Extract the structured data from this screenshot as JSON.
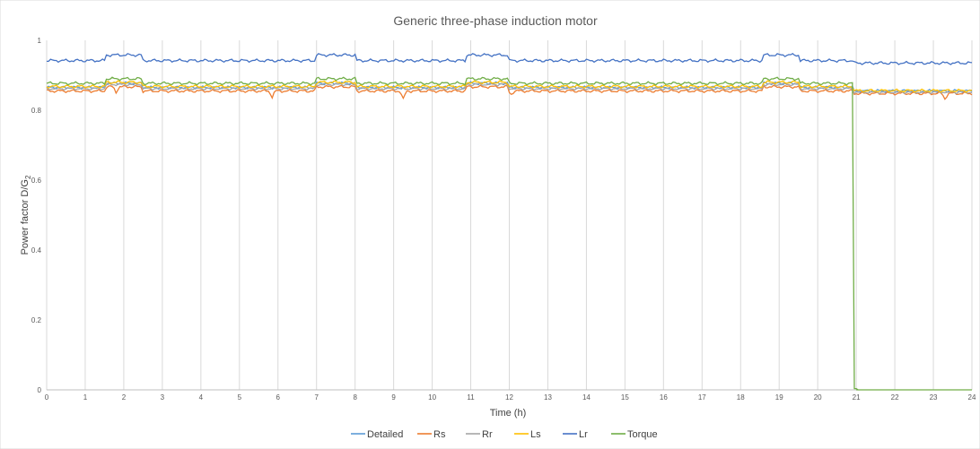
{
  "chart_data": {
    "type": "line",
    "title": "Generic three-phase induction motor",
    "xlabel": "Time (h)",
    "ylabel_main": "Power factor D/G",
    "ylabel_sub": "2",
    "xlim": [
      0,
      24
    ],
    "ylim": [
      0,
      1
    ],
    "x_ticks": [
      "0",
      "1",
      "2",
      "3",
      "4",
      "5",
      "6",
      "7",
      "8",
      "9",
      "10",
      "11",
      "12",
      "13",
      "14",
      "15",
      "16",
      "17",
      "18",
      "19",
      "20",
      "21",
      "22",
      "23",
      "24"
    ],
    "y_ticks": [
      "0",
      "0.2",
      "0.4",
      "0.6",
      "0.8",
      "1"
    ],
    "grid": "vertical",
    "legend_position": "bottom",
    "series": [
      {
        "name": "Detailed",
        "color": "#5b9bd5",
        "base": 0.865,
        "high": 0.877,
        "low_after": 0.855,
        "dip_points": []
      },
      {
        "name": "Rs",
        "color": "#ed7d31",
        "base": 0.855,
        "high": 0.867,
        "low_after": 0.848,
        "dip_points": [
          [
            1.8,
            0.852
          ],
          [
            5.85,
            0.838
          ],
          [
            9.25,
            0.83
          ],
          [
            12.05,
            0.846
          ],
          [
            23.3,
            0.833
          ]
        ]
      },
      {
        "name": "Rr",
        "color": "#a5a5a5",
        "base": 0.862,
        "high": 0.874,
        "low_after": 0.852,
        "dip_points": []
      },
      {
        "name": "Ls",
        "color": "#ffc000",
        "base": 0.868,
        "high": 0.88,
        "low_after": 0.856,
        "dip_points": []
      },
      {
        "name": "Lr",
        "color": "#4472c4",
        "base": 0.942,
        "high": 0.958,
        "low_after": 0.935,
        "dip_points": []
      },
      {
        "name": "Torque",
        "color": "#70ad47",
        "base": 0.877,
        "high": 0.89,
        "low_after": 0.0,
        "dip_points": [],
        "drop_at": 21.0
      }
    ],
    "elevated_intervals": [
      [
        1.55,
        2.45
      ],
      [
        7.0,
        8.0
      ],
      [
        10.9,
        11.95
      ],
      [
        18.6,
        19.5
      ]
    ],
    "step_down_at": 20.95
  }
}
